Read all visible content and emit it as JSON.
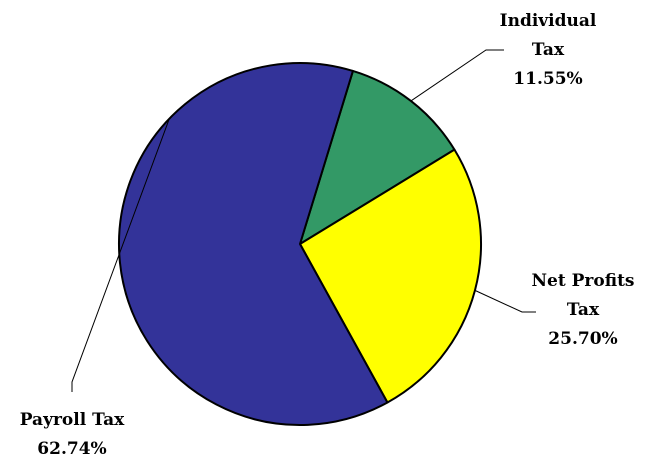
{
  "chart_data": {
    "type": "pie",
    "title": "",
    "slices": [
      {
        "name": "Individual Tax",
        "label_lines": [
          "Individual",
          "Tax"
        ],
        "value": 11.55,
        "value_label": "11.55%",
        "color": "#339966"
      },
      {
        "name": "Net Profits Tax",
        "label_lines": [
          "Net Profits",
          "Tax"
        ],
        "value": 25.7,
        "value_label": "25.70%",
        "color": "#FFFF00"
      },
      {
        "name": "Payroll Tax",
        "label_lines": [
          "Payroll Tax"
        ],
        "value": 62.74,
        "value_label": "62.74%",
        "color": "#333399"
      }
    ],
    "start_angle_deg": 17,
    "direction": "clockwise",
    "legend": "none",
    "outline_color": "#000000"
  }
}
